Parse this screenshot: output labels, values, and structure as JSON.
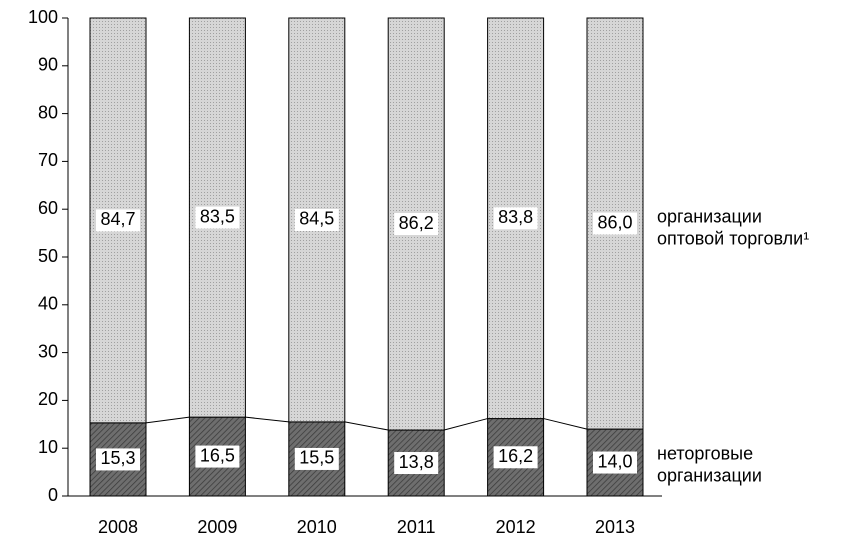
{
  "chart_data": {
    "type": "stacked_bar",
    "categories": [
      "2008",
      "2009",
      "2010",
      "2011",
      "2012",
      "2013"
    ],
    "series": [
      {
        "name": "неторговые организации",
        "color": "#6e6e6e",
        "values": [
          15.3,
          16.5,
          15.5,
          13.8,
          16.2,
          14.0
        ],
        "value_labels": [
          "15,3",
          "16,5",
          "15,5",
          "13,8",
          "16,2",
          "14,0"
        ]
      },
      {
        "name": "организации оптовой торговли¹",
        "color": "#d6d6d6",
        "values": [
          84.7,
          83.5,
          84.5,
          86.2,
          83.8,
          86.0
        ],
        "value_labels": [
          "84,7",
          "83,5",
          "84,5",
          "86,2",
          "83,8",
          "86,0"
        ]
      }
    ],
    "ylim": [
      0,
      100
    ],
    "yticks": [
      0,
      10,
      20,
      30,
      40,
      50,
      60,
      70,
      80,
      90,
      100
    ]
  }
}
